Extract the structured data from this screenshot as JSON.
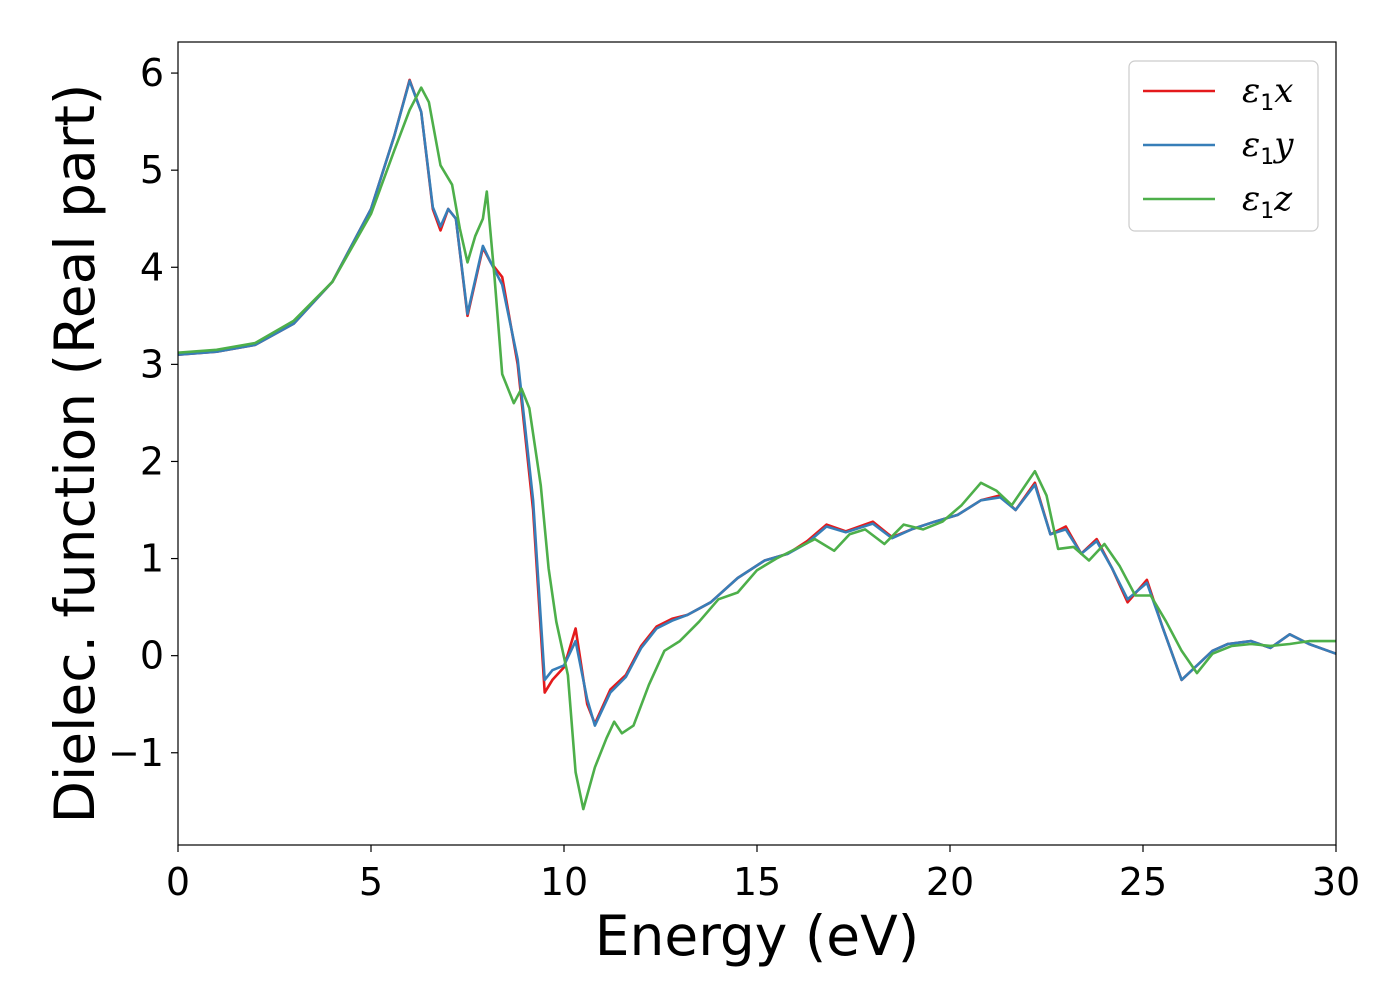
{
  "chart_data": {
    "type": "line",
    "xlabel": "Energy (eV)",
    "ylabel": "Dielec. function (Real part)",
    "xlim": [
      0,
      30
    ],
    "ylim": [
      -1.95,
      6.32
    ],
    "xticks": [
      0,
      5,
      10,
      15,
      20,
      25,
      30
    ],
    "xtick_labels": [
      "0",
      "5",
      "10",
      "15",
      "20",
      "25",
      "30"
    ],
    "yticks": [
      -1,
      0,
      1,
      2,
      3,
      4,
      5,
      6
    ],
    "ytick_labels": [
      "−1",
      "0",
      "1",
      "2",
      "3",
      "4",
      "5",
      "6"
    ],
    "grid": false,
    "legend_position": "top-right",
    "series": [
      {
        "name": "ε1x",
        "legend_main": "ε",
        "legend_sub": "1",
        "legend_var": "x",
        "color": "#e41a1c",
        "points": [
          [
            0,
            3.1
          ],
          [
            1,
            3.13
          ],
          [
            2,
            3.2
          ],
          [
            3,
            3.42
          ],
          [
            4,
            3.85
          ],
          [
            5,
            4.6
          ],
          [
            5.6,
            5.35
          ],
          [
            6.0,
            5.93
          ],
          [
            6.3,
            5.6
          ],
          [
            6.6,
            4.6
          ],
          [
            6.8,
            4.38
          ],
          [
            7.0,
            4.6
          ],
          [
            7.2,
            4.5
          ],
          [
            7.5,
            3.5
          ],
          [
            7.9,
            4.2
          ],
          [
            8.1,
            4.05
          ],
          [
            8.4,
            3.9
          ],
          [
            8.8,
            3.0
          ],
          [
            9.2,
            1.5
          ],
          [
            9.5,
            -0.38
          ],
          [
            9.7,
            -0.25
          ],
          [
            10.0,
            -0.12
          ],
          [
            10.3,
            0.28
          ],
          [
            10.6,
            -0.5
          ],
          [
            10.8,
            -0.7
          ],
          [
            11.2,
            -0.35
          ],
          [
            11.6,
            -0.2
          ],
          [
            12.0,
            0.1
          ],
          [
            12.4,
            0.3
          ],
          [
            12.8,
            0.38
          ],
          [
            13.2,
            0.42
          ],
          [
            13.8,
            0.55
          ],
          [
            14.5,
            0.8
          ],
          [
            15.2,
            0.98
          ],
          [
            15.8,
            1.05
          ],
          [
            16.3,
            1.18
          ],
          [
            16.8,
            1.35
          ],
          [
            17.3,
            1.28
          ],
          [
            18.0,
            1.38
          ],
          [
            18.5,
            1.22
          ],
          [
            19.0,
            1.3
          ],
          [
            19.6,
            1.38
          ],
          [
            20.2,
            1.45
          ],
          [
            20.8,
            1.6
          ],
          [
            21.3,
            1.65
          ],
          [
            21.7,
            1.5
          ],
          [
            22.2,
            1.78
          ],
          [
            22.6,
            1.25
          ],
          [
            23.0,
            1.33
          ],
          [
            23.4,
            1.05
          ],
          [
            23.8,
            1.2
          ],
          [
            24.2,
            0.9
          ],
          [
            24.6,
            0.55
          ],
          [
            25.1,
            0.78
          ],
          [
            25.5,
            0.3
          ],
          [
            26.0,
            -0.25
          ],
          [
            26.4,
            -0.1
          ],
          [
            26.8,
            0.05
          ],
          [
            27.2,
            0.12
          ],
          [
            27.8,
            0.15
          ],
          [
            28.3,
            0.08
          ],
          [
            28.8,
            0.22
          ],
          [
            29.3,
            0.12
          ],
          [
            30,
            0.02
          ]
        ]
      },
      {
        "name": "ε1y",
        "legend_main": "ε",
        "legend_sub": "1",
        "legend_var": "y",
        "color": "#377eb8",
        "points": [
          [
            0,
            3.1
          ],
          [
            1,
            3.13
          ],
          [
            2,
            3.2
          ],
          [
            3,
            3.42
          ],
          [
            4,
            3.85
          ],
          [
            5,
            4.6
          ],
          [
            5.6,
            5.35
          ],
          [
            6.0,
            5.92
          ],
          [
            6.3,
            5.6
          ],
          [
            6.6,
            4.62
          ],
          [
            6.8,
            4.42
          ],
          [
            7.0,
            4.6
          ],
          [
            7.2,
            4.5
          ],
          [
            7.5,
            3.52
          ],
          [
            7.9,
            4.22
          ],
          [
            8.1,
            4.05
          ],
          [
            8.4,
            3.82
          ],
          [
            8.8,
            3.05
          ],
          [
            9.2,
            1.6
          ],
          [
            9.5,
            -0.25
          ],
          [
            9.7,
            -0.15
          ],
          [
            10.0,
            -0.1
          ],
          [
            10.3,
            0.15
          ],
          [
            10.6,
            -0.45
          ],
          [
            10.8,
            -0.72
          ],
          [
            11.2,
            -0.38
          ],
          [
            11.6,
            -0.22
          ],
          [
            12.0,
            0.08
          ],
          [
            12.4,
            0.28
          ],
          [
            12.8,
            0.36
          ],
          [
            13.2,
            0.42
          ],
          [
            13.8,
            0.55
          ],
          [
            14.5,
            0.8
          ],
          [
            15.2,
            0.98
          ],
          [
            15.8,
            1.05
          ],
          [
            16.3,
            1.16
          ],
          [
            16.8,
            1.33
          ],
          [
            17.3,
            1.27
          ],
          [
            18.0,
            1.36
          ],
          [
            18.5,
            1.21
          ],
          [
            19.0,
            1.3
          ],
          [
            19.6,
            1.38
          ],
          [
            20.2,
            1.45
          ],
          [
            20.8,
            1.6
          ],
          [
            21.3,
            1.63
          ],
          [
            21.7,
            1.5
          ],
          [
            22.2,
            1.76
          ],
          [
            22.6,
            1.25
          ],
          [
            23.0,
            1.3
          ],
          [
            23.4,
            1.05
          ],
          [
            23.8,
            1.18
          ],
          [
            24.2,
            0.9
          ],
          [
            24.6,
            0.58
          ],
          [
            25.1,
            0.75
          ],
          [
            25.5,
            0.3
          ],
          [
            26.0,
            -0.25
          ],
          [
            26.4,
            -0.1
          ],
          [
            26.8,
            0.05
          ],
          [
            27.2,
            0.12
          ],
          [
            27.8,
            0.15
          ],
          [
            28.3,
            0.08
          ],
          [
            28.8,
            0.22
          ],
          [
            29.3,
            0.12
          ],
          [
            30,
            0.02
          ]
        ]
      },
      {
        "name": "ε1z",
        "legend_main": "ε",
        "legend_sub": "1",
        "legend_var": "z",
        "color": "#4daf4a",
        "points": [
          [
            0,
            3.12
          ],
          [
            1,
            3.15
          ],
          [
            2,
            3.22
          ],
          [
            3,
            3.45
          ],
          [
            4,
            3.85
          ],
          [
            5,
            4.55
          ],
          [
            5.6,
            5.2
          ],
          [
            6.0,
            5.62
          ],
          [
            6.3,
            5.85
          ],
          [
            6.5,
            5.7
          ],
          [
            6.8,
            5.05
          ],
          [
            7.1,
            4.85
          ],
          [
            7.3,
            4.4
          ],
          [
            7.5,
            4.05
          ],
          [
            7.7,
            4.32
          ],
          [
            7.9,
            4.5
          ],
          [
            8.0,
            4.78
          ],
          [
            8.2,
            3.9
          ],
          [
            8.4,
            2.9
          ],
          [
            8.7,
            2.6
          ],
          [
            8.9,
            2.75
          ],
          [
            9.1,
            2.55
          ],
          [
            9.4,
            1.75
          ],
          [
            9.6,
            0.9
          ],
          [
            9.8,
            0.35
          ],
          [
            10.1,
            -0.2
          ],
          [
            10.3,
            -1.2
          ],
          [
            10.5,
            -1.58
          ],
          [
            10.8,
            -1.15
          ],
          [
            11.1,
            -0.85
          ],
          [
            11.3,
            -0.68
          ],
          [
            11.5,
            -0.8
          ],
          [
            11.8,
            -0.72
          ],
          [
            12.2,
            -0.3
          ],
          [
            12.6,
            0.05
          ],
          [
            13.0,
            0.15
          ],
          [
            13.5,
            0.35
          ],
          [
            14.0,
            0.58
          ],
          [
            14.5,
            0.65
          ],
          [
            15.0,
            0.88
          ],
          [
            15.5,
            1.0
          ],
          [
            16.0,
            1.1
          ],
          [
            16.5,
            1.2
          ],
          [
            17.0,
            1.08
          ],
          [
            17.4,
            1.25
          ],
          [
            17.8,
            1.3
          ],
          [
            18.3,
            1.15
          ],
          [
            18.8,
            1.35
          ],
          [
            19.3,
            1.3
          ],
          [
            19.8,
            1.38
          ],
          [
            20.3,
            1.55
          ],
          [
            20.8,
            1.78
          ],
          [
            21.2,
            1.7
          ],
          [
            21.6,
            1.55
          ],
          [
            22.2,
            1.9
          ],
          [
            22.5,
            1.65
          ],
          [
            22.8,
            1.1
          ],
          [
            23.2,
            1.12
          ],
          [
            23.6,
            0.98
          ],
          [
            24.0,
            1.15
          ],
          [
            24.4,
            0.92
          ],
          [
            24.8,
            0.62
          ],
          [
            25.2,
            0.62
          ],
          [
            25.6,
            0.35
          ],
          [
            26.0,
            0.05
          ],
          [
            26.4,
            -0.18
          ],
          [
            26.8,
            0.02
          ],
          [
            27.3,
            0.1
          ],
          [
            27.8,
            0.12
          ],
          [
            28.3,
            0.1
          ],
          [
            28.8,
            0.12
          ],
          [
            29.3,
            0.15
          ],
          [
            30,
            0.15
          ]
        ]
      }
    ]
  }
}
